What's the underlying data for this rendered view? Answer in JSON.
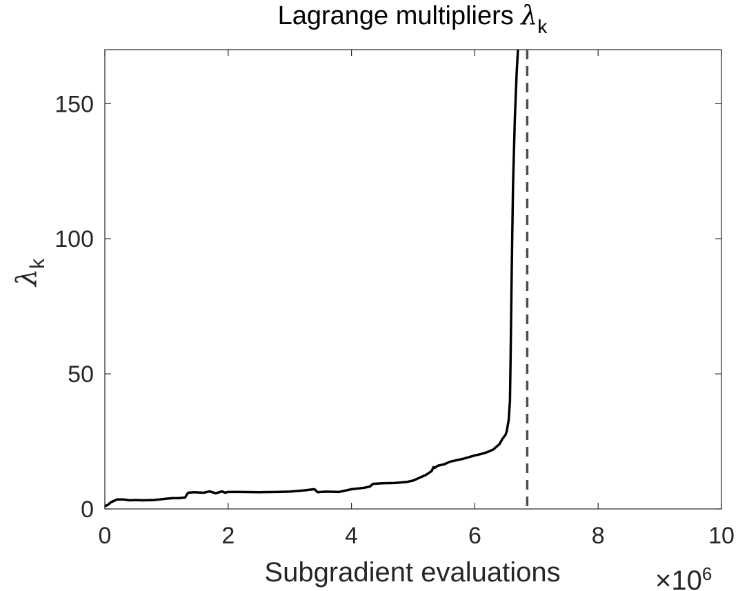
{
  "chart_data": {
    "type": "line",
    "title": "Lagrange multipliers λk",
    "title_text": "Lagrange multipliers",
    "title_symbol": "λ",
    "title_subscript": "k",
    "xlabel": "Subgradient evaluations",
    "x_exponent_label": "×10",
    "x_exponent": "6",
    "ylabel_symbol": "λ",
    "ylabel_subscript": "k",
    "xlim": [
      0,
      10
    ],
    "ylim": [
      0,
      170
    ],
    "x_ticks": [
      0,
      2,
      4,
      6,
      8,
      10
    ],
    "y_ticks": [
      0,
      50,
      100,
      150
    ],
    "x_tick_labels": [
      "0",
      "2",
      "4",
      "6",
      "8",
      "10"
    ],
    "y_tick_labels": [
      "0",
      "50",
      "100",
      "150"
    ],
    "grid": false,
    "box": true,
    "series": [
      {
        "style": "solid",
        "color": "#000000",
        "x": [
          0,
          0.05,
          0.1,
          0.15,
          0.2,
          0.3,
          0.4,
          0.5,
          0.6,
          0.8,
          1.0,
          1.1,
          1.2,
          1.3,
          1.35,
          1.45,
          1.6,
          1.7,
          1.8,
          1.9,
          1.95,
          2.0,
          2.2,
          2.5,
          2.8,
          3.0,
          3.2,
          3.4,
          3.45,
          3.5,
          3.6,
          3.8,
          4.0,
          4.2,
          4.3,
          4.35,
          4.5,
          4.7,
          4.9,
          5.0,
          5.1,
          5.2,
          5.3,
          5.33,
          5.35,
          5.4,
          5.5,
          5.6,
          5.8,
          6.0,
          6.1,
          6.2,
          6.3,
          6.4,
          6.45,
          6.5,
          6.52,
          6.55,
          6.57,
          6.58,
          6.6,
          6.62,
          6.65,
          6.68,
          6.7
        ],
        "y": [
          1,
          1.5,
          2.5,
          3,
          3.5,
          3.5,
          3.2,
          3.3,
          3.2,
          3.3,
          3.8,
          4,
          4,
          4.2,
          6,
          6.2,
          6,
          6.5,
          5.8,
          6.5,
          6,
          6.3,
          6.3,
          6.2,
          6.3,
          6.4,
          6.8,
          7.3,
          6.2,
          6.3,
          6.4,
          6.3,
          7.3,
          7.8,
          8.3,
          9.3,
          9.5,
          9.6,
          10,
          10.5,
          11.5,
          12.5,
          14,
          15.5,
          15.2,
          16,
          16.5,
          17.5,
          18.5,
          19.8,
          20.3,
          21,
          22,
          24,
          26,
          27.5,
          29,
          33,
          40,
          55,
          90,
          120,
          145,
          162,
          170
        ]
      }
    ],
    "reference_lines": [
      {
        "orientation": "vertical",
        "x": 6.85,
        "style": "dashed",
        "color": "#4d4d4d"
      }
    ]
  }
}
